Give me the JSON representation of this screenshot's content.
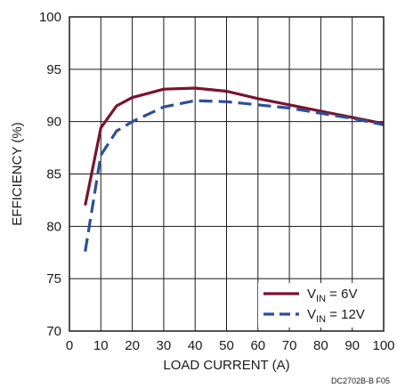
{
  "chart_data": {
    "type": "line",
    "xlabel": "LOAD CURRENT (A)",
    "ylabel": "EFFICIENCY (%)",
    "xlim": [
      0,
      100
    ],
    "ylim": [
      70,
      100
    ],
    "x_ticks": [
      0,
      10,
      20,
      30,
      40,
      50,
      60,
      70,
      80,
      90,
      100
    ],
    "y_ticks": [
      70,
      75,
      80,
      85,
      90,
      95,
      100
    ],
    "grid": true,
    "legend_position": "bottom-right",
    "series": [
      {
        "name": "VIN = 6V",
        "name_main": "V",
        "name_sub": "IN",
        "name_rest": " = 6V",
        "color": "#7b1230",
        "style": "solid",
        "x": [
          5,
          10,
          15,
          20,
          25,
          30,
          40,
          50,
          60,
          70,
          80,
          90,
          100
        ],
        "y": [
          82.0,
          89.4,
          91.5,
          92.3,
          92.7,
          93.1,
          93.2,
          92.9,
          92.2,
          91.6,
          91.0,
          90.4,
          89.8
        ]
      },
      {
        "name": "VIN = 12V",
        "name_main": "V",
        "name_sub": "IN",
        "name_rest": " = 12V",
        "color": "#2d4f96",
        "style": "dashed",
        "x": [
          5,
          10,
          15,
          20,
          25,
          30,
          40,
          50,
          60,
          70,
          80,
          90,
          100
        ],
        "y": [
          77.6,
          86.8,
          89.1,
          90.0,
          90.7,
          91.4,
          92.0,
          91.9,
          91.6,
          91.3,
          90.8,
          90.3,
          89.7
        ]
      }
    ]
  },
  "figure_id": "DC2702B-B F05"
}
